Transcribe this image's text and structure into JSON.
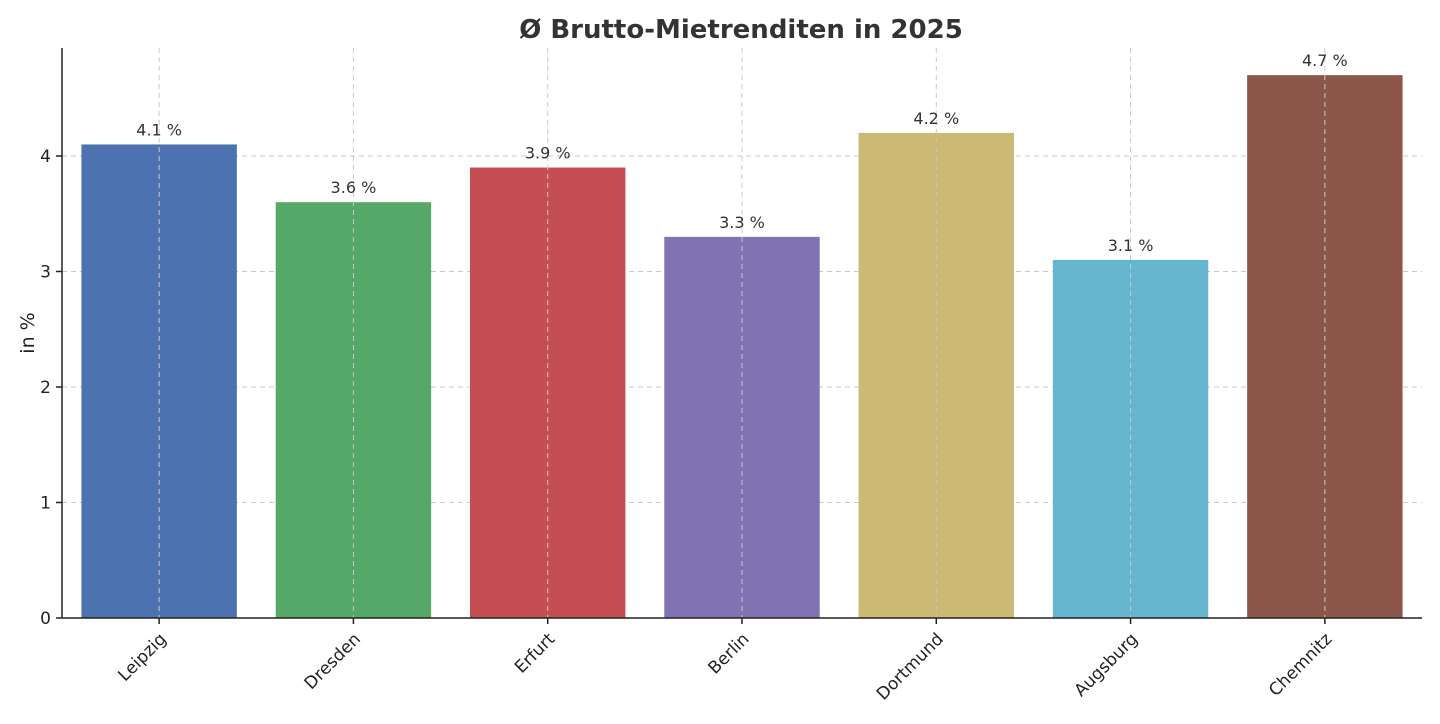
{
  "chart_data": {
    "type": "bar",
    "title": "Ø Brutto-Mietrenditen in 2025",
    "xlabel": "",
    "ylabel": "in %",
    "categories": [
      "Leipzig",
      "Dresden",
      "Erfurt",
      "Berlin",
      "Dortmund",
      "Augsburg",
      "Chemnitz"
    ],
    "values": [
      4.1,
      3.6,
      3.9,
      3.3,
      4.2,
      3.1,
      4.7
    ],
    "data_labels": [
      "4.1 %",
      "3.6 %",
      "3.9 %",
      "3.3 %",
      "4.2 %",
      "3.1 %",
      "4.7 %"
    ],
    "colors": [
      "#4C72B0",
      "#55A868",
      "#C44E52",
      "#8172B2",
      "#CCB974",
      "#64B5CD",
      "#8C564B"
    ],
    "yticks": [
      0,
      1,
      2,
      3,
      4
    ],
    "ylim": [
      0,
      4.935
    ],
    "grid": true,
    "legend": "none"
  }
}
